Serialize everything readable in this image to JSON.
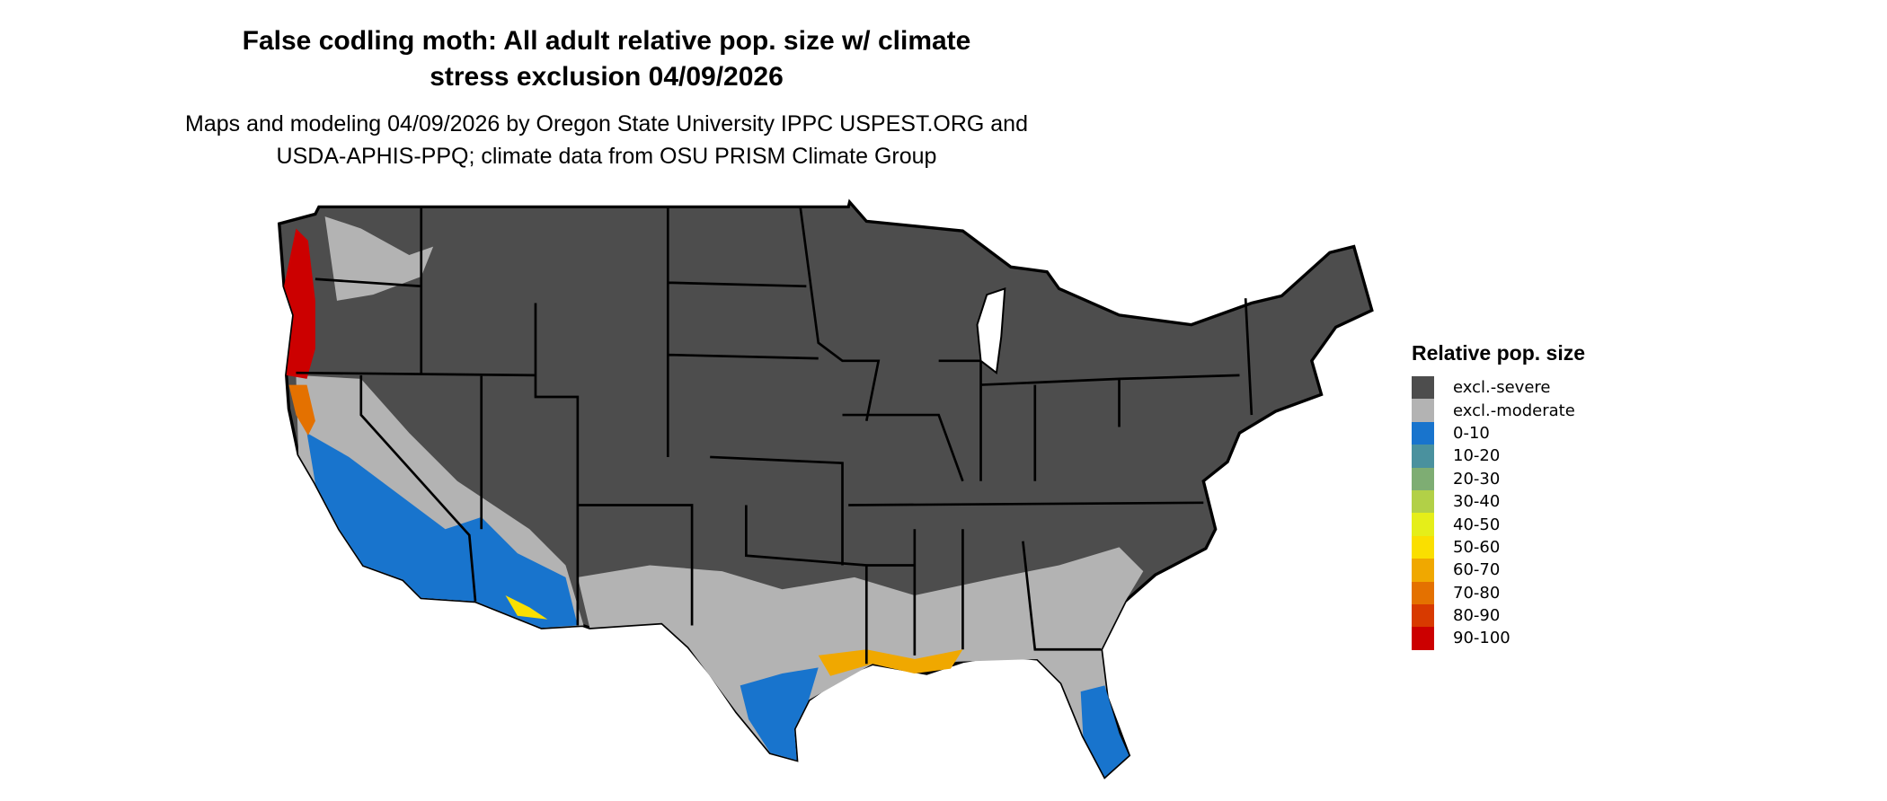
{
  "title_lines": [
    "False codling moth: All adult relative pop. size w/ climate",
    "stress exclusion 04/09/2026"
  ],
  "subtitle_lines": [
    "Maps and modeling 04/09/2026 by Oregon State University IPPC USPEST.ORG and",
    "USDA-APHIS-PPQ; climate data from OSU PRISM Climate Group"
  ],
  "legend": {
    "title": "Relative pop. size",
    "items": [
      {
        "label": "excl.-severe",
        "color": "#4d4d4d"
      },
      {
        "label": "excl.-moderate",
        "color": "#b3b3b3"
      },
      {
        "label": "0-10",
        "color": "#1874cd"
      },
      {
        "label": "10-20",
        "color": "#4a919e"
      },
      {
        "label": "20-30",
        "color": "#7ead73"
      },
      {
        "label": "30-40",
        "color": "#b2d047"
      },
      {
        "label": "40-50",
        "color": "#e5ee19"
      },
      {
        "label": "50-60",
        "color": "#fadf00"
      },
      {
        "label": "60-70",
        "color": "#f0a800"
      },
      {
        "label": "70-80",
        "color": "#e47100"
      },
      {
        "label": "80-90",
        "color": "#d83a00"
      },
      {
        "label": "90-100",
        "color": "#cc0000"
      }
    ]
  }
}
